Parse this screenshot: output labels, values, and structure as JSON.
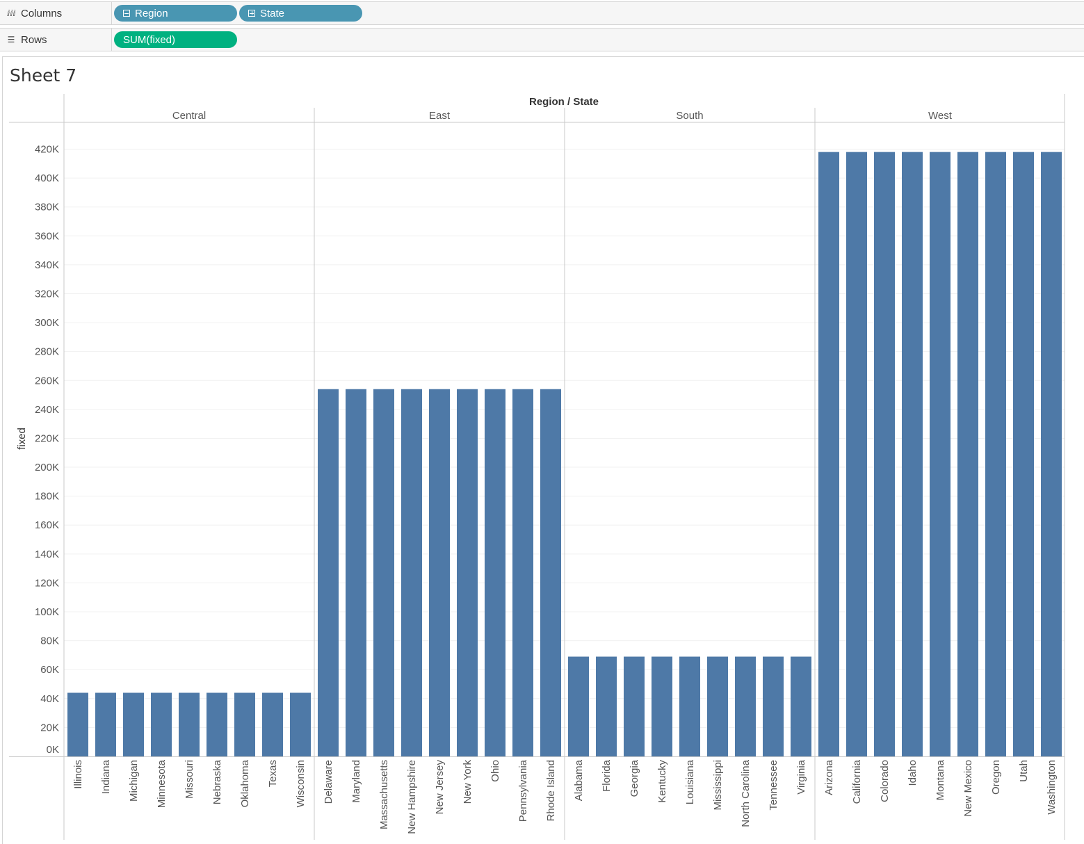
{
  "columns_shelf": {
    "label": "Columns",
    "icon": "columns-icon",
    "pills": [
      {
        "label": "Region",
        "expand": "minus"
      },
      {
        "label": "State",
        "expand": "plus"
      }
    ]
  },
  "rows_shelf": {
    "label": "Rows",
    "icon": "rows-icon",
    "pills": [
      {
        "label": "SUM(fixed)"
      }
    ]
  },
  "sheet_title": "Sheet 7",
  "colors": {
    "bar": "#4e79a7",
    "pill_dimension": "#4996b2",
    "pill_measure": "#00b180"
  },
  "chart_data": {
    "type": "bar",
    "column_header": "Region / State",
    "ylabel": "fixed",
    "ylim": [
      0,
      420000
    ],
    "yticks": [
      {
        "value": 0,
        "label": "0K"
      },
      {
        "value": 20000,
        "label": "20K"
      },
      {
        "value": 40000,
        "label": "40K"
      },
      {
        "value": 60000,
        "label": "60K"
      },
      {
        "value": 80000,
        "label": "80K"
      },
      {
        "value": 100000,
        "label": "100K"
      },
      {
        "value": 120000,
        "label": "120K"
      },
      {
        "value": 140000,
        "label": "140K"
      },
      {
        "value": 160000,
        "label": "160K"
      },
      {
        "value": 180000,
        "label": "180K"
      },
      {
        "value": 200000,
        "label": "200K"
      },
      {
        "value": 220000,
        "label": "220K"
      },
      {
        "value": 240000,
        "label": "240K"
      },
      {
        "value": 260000,
        "label": "260K"
      },
      {
        "value": 280000,
        "label": "280K"
      },
      {
        "value": 300000,
        "label": "300K"
      },
      {
        "value": 320000,
        "label": "320K"
      },
      {
        "value": 340000,
        "label": "340K"
      },
      {
        "value": 360000,
        "label": "360K"
      },
      {
        "value": 380000,
        "label": "380K"
      },
      {
        "value": 400000,
        "label": "400K"
      },
      {
        "value": 420000,
        "label": "420K"
      }
    ],
    "groups": [
      {
        "region": "Central",
        "states": [
          "Illinois",
          "Indiana",
          "Michigan",
          "Minnesota",
          "Missouri",
          "Nebraska",
          "Oklahoma",
          "Texas",
          "Wisconsin"
        ],
        "values": [
          44000,
          44000,
          44000,
          44000,
          44000,
          44000,
          44000,
          44000,
          44000
        ]
      },
      {
        "region": "East",
        "states": [
          "Delaware",
          "Maryland",
          "Massachusetts",
          "New Hampshire",
          "New Jersey",
          "New York",
          "Ohio",
          "Pennsylvania",
          "Rhode Island"
        ],
        "values": [
          254000,
          254000,
          254000,
          254000,
          254000,
          254000,
          254000,
          254000,
          254000
        ]
      },
      {
        "region": "South",
        "states": [
          "Alabama",
          "Florida",
          "Georgia",
          "Kentucky",
          "Louisiana",
          "Mississippi",
          "North Carolina",
          "Tennessee",
          "Virginia"
        ],
        "values": [
          69000,
          69000,
          69000,
          69000,
          69000,
          69000,
          69000,
          69000,
          69000
        ]
      },
      {
        "region": "West",
        "states": [
          "Arizona",
          "California",
          "Colorado",
          "Idaho",
          "Montana",
          "New Mexico",
          "Oregon",
          "Utah",
          "Washington"
        ],
        "values": [
          418000,
          418000,
          418000,
          418000,
          418000,
          418000,
          418000,
          418000,
          418000
        ]
      }
    ]
  }
}
